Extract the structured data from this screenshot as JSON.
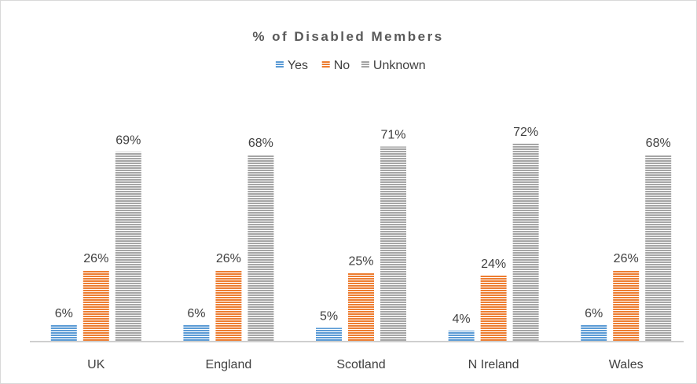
{
  "chart_data": {
    "type": "bar",
    "title": "% of Disabled Members",
    "categories": [
      "UK",
      "England",
      "Scotland",
      "N Ireland",
      "Wales"
    ],
    "series": [
      {
        "name": "Yes",
        "values": [
          6,
          6,
          5,
          4,
          6
        ],
        "labels": [
          "6%",
          "6%",
          "5%",
          "4%",
          "6%"
        ],
        "color": "#5B9BD5"
      },
      {
        "name": "No",
        "values": [
          26,
          26,
          25,
          24,
          26
        ],
        "labels": [
          "26%",
          "26%",
          "25%",
          "24%",
          "26%"
        ],
        "color": "#ED7D31"
      },
      {
        "name": "Unknown",
        "values": [
          69,
          68,
          71,
          72,
          68
        ],
        "labels": [
          "69%",
          "68%",
          "71%",
          "72%",
          "68%"
        ],
        "color": "#A5A5A5"
      }
    ],
    "ylim": [
      0,
      100
    ],
    "grid": false,
    "legend_position": "top-center",
    "bar_fill": "horizontal-stripes"
  }
}
